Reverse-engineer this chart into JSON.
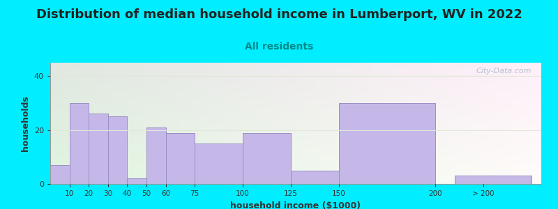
{
  "title": "Distribution of median household income in Lumberport, WV in 2022",
  "subtitle": "All residents",
  "xlabel": "household income ($1000)",
  "ylabel": "households",
  "bar_labels": [
    "10",
    "20",
    "30",
    "40",
    "50",
    "60",
    "75",
    "100",
    "125",
    "150",
    "200",
    "> 200"
  ],
  "bar_values": [
    7,
    30,
    26,
    25,
    2,
    21,
    19,
    15,
    19,
    5,
    30,
    3
  ],
  "bar_color": "#c5b8e8",
  "bar_edge_color": "#9b8ec4",
  "ylim": [
    0,
    45
  ],
  "yticks": [
    0,
    20,
    40
  ],
  "background_color": "#00eeff",
  "title_fontsize": 13,
  "subtitle_fontsize": 10,
  "title_color": "#222222",
  "subtitle_color": "#008888",
  "axis_label_fontsize": 9,
  "watermark_text": "City-Data.com",
  "watermark_color": "#aab8c8",
  "left_edges": [
    0,
    10,
    20,
    30,
    40,
    50,
    60,
    75,
    100,
    125,
    150,
    210
  ],
  "widths": [
    10,
    10,
    10,
    10,
    10,
    10,
    15,
    25,
    25,
    25,
    50,
    40
  ],
  "tick_positions": [
    10,
    20,
    30,
    40,
    50,
    60,
    75,
    100,
    125,
    150,
    200,
    225
  ],
  "xlim": [
    0,
    255
  ],
  "plot_bg_colors": [
    "#d6efc0",
    "#f0f8e8",
    "#f8f8f0"
  ],
  "grid_color": "#e0e8d8"
}
